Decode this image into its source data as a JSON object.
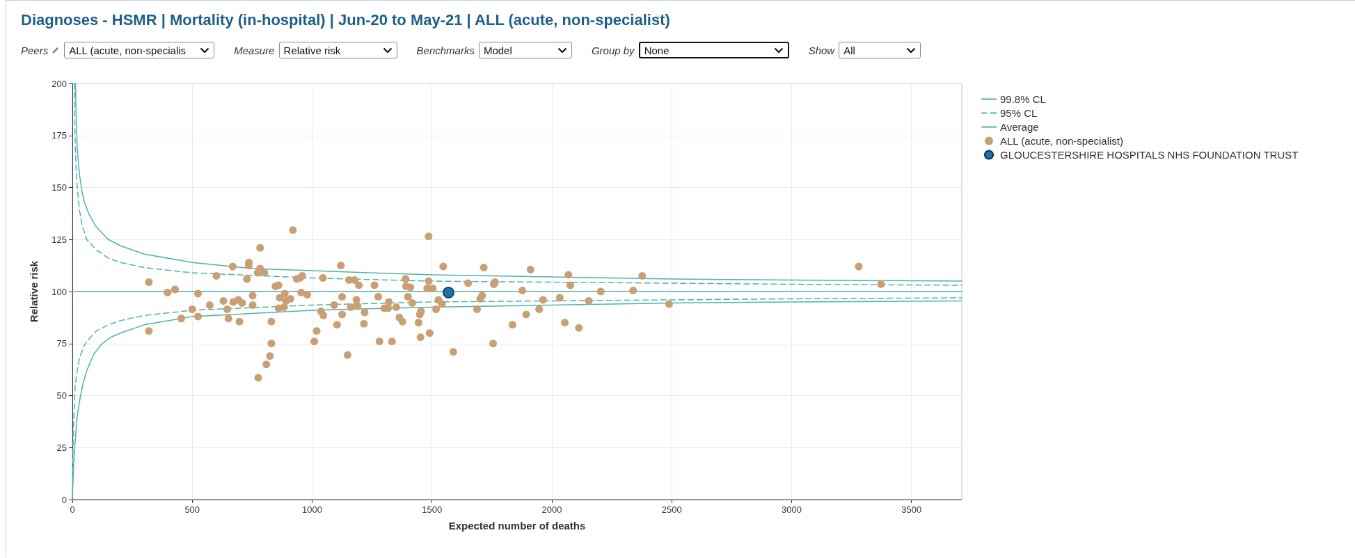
{
  "chart_data": {
    "type": "scatter",
    "title": "Diagnoses - HSMR | Mortality (in-hospital) | Jun-20 to May-21 | ALL (acute, non-specialist)",
    "annotations": [
      "Peers",
      "ALL (acute, non-specialis",
      "Measure",
      "Relative risk",
      "Benchmarks",
      "Model",
      "Group by",
      "None",
      "Show",
      "All"
    ],
    "xlabel": "Expected number of deaths",
    "ylabel": "Relative risk",
    "xlim": [
      0,
      3710
    ],
    "xticks": [
      0,
      500,
      1000,
      1500,
      2000,
      2500,
      3000,
      3500
    ],
    "ylim": [
      0,
      200
    ],
    "yticks": [
      0,
      25,
      50,
      75,
      100,
      125,
      150,
      175,
      200
    ],
    "grid": true,
    "legend": "top right",
    "series": [
      {
        "name": "99.8% CL",
        "type": "line",
        "marker": "none",
        "line_style": "solid",
        "color": "#4db3ae",
        "x": [
          13,
          16,
          20,
          25,
          30,
          40,
          50,
          70,
          100,
          150,
          200,
          300,
          500,
          750,
          1000,
          1500,
          2000,
          2500,
          3000,
          3710,
          null,
          0,
          3,
          6,
          10,
          15,
          20,
          27,
          34,
          45,
          60,
          90,
          124,
          160,
          200,
          300,
          500,
          750,
          1000,
          1500,
          2000,
          2500,
          3000,
          3710
        ],
        "values": [
          200,
          183,
          170,
          162,
          156,
          148,
          143,
          137,
          131,
          125,
          122,
          118,
          114,
          111,
          110,
          108,
          107,
          106,
          105.5,
          105,
          null,
          0,
          10,
          18,
          25,
          33,
          40,
          45,
          50,
          56,
          62,
          70,
          75,
          78,
          80,
          84,
          88,
          89.5,
          91,
          92.5,
          93.5,
          94.5,
          95,
          95.5
        ]
      },
      {
        "name": "95% CL",
        "type": "line",
        "marker": "none",
        "line_style": "dashed",
        "color": "#4db3ae",
        "x": [
          8,
          10,
          12,
          16,
          20,
          30,
          40,
          60,
          100,
          150,
          200,
          300,
          500,
          1000,
          1500,
          2000,
          3000,
          3710,
          null,
          0,
          3,
          6,
          9,
          12,
          20,
          30,
          45,
          60,
          100,
          150,
          200,
          300,
          500,
          1000,
          1500,
          2000,
          3000,
          3710
        ],
        "values": [
          200,
          182,
          170,
          158,
          150,
          139,
          132,
          125,
          120,
          116,
          114,
          111.5,
          109,
          106.5,
          105,
          104.5,
          103.5,
          103,
          null,
          0,
          25,
          40,
          48,
          55,
          62,
          68,
          73,
          76,
          81,
          84,
          86,
          88.5,
          91,
          93.5,
          95,
          95.5,
          96.5,
          97
        ]
      },
      {
        "name": "Average",
        "type": "line",
        "marker": "none",
        "line_style": "solid",
        "color": "#4db3ae",
        "x": [
          0,
          3710
        ],
        "values": [
          100,
          100
        ]
      },
      {
        "name": "ALL (acute, non-specialist)",
        "type": "scatter",
        "marker": "circle",
        "color": "#c9a074",
        "x": [
          319,
          319,
          397,
          428,
          454,
          500,
          524,
          524,
          573,
          601,
          630,
          646,
          651,
          669,
          671,
          692,
          697,
          708,
          728,
          736,
          736,
          752,
          752,
          773,
          783,
          783,
          775,
          801,
          809,
          824,
          830,
          830,
          847,
          860,
          860,
          865,
          886,
          891,
          883,
          910,
          920,
          936,
          949,
          959,
          954,
          980,
          1009,
          1019,
          1037,
          1045,
          1047,
          1092,
          1104,
          1120,
          1125,
          1125,
          1148,
          1154,
          1161,
          1177,
          1185,
          1190,
          1195,
          1219,
          1216,
          1260,
          1276,
          1281,
          1301,
          1317,
          1320,
          1333,
          1351,
          1364,
          1377,
          1390,
          1392,
          1400,
          1410,
          1418,
          1444,
          1449,
          1454,
          1452,
          1486,
          1486,
          1480,
          1503,
          1490,
          1517,
          1527,
          1542,
          1547,
          1589,
          1651,
          1688,
          1701,
          1709,
          1716,
          1755,
          1758,
          1763,
          1836,
          1877,
          1893,
          1911,
          1947,
          1963,
          2033,
          2054,
          2069,
          2077,
          2113,
          2154,
          2204,
          2339,
          2377,
          2489,
          3280,
          3373
        ],
        "values": [
          104.5,
          81,
          99.5,
          101,
          87,
          91.5,
          99,
          88,
          93.5,
          107.5,
          95.5,
          91.5,
          87,
          112,
          95,
          96,
          85.5,
          94.5,
          106,
          114,
          112.5,
          98,
          93.5,
          109,
          121,
          111,
          58.5,
          109,
          65,
          69,
          85.5,
          75,
          102.5,
          103,
          92,
          97,
          99,
          95.5,
          92.5,
          96.5,
          129.5,
          106,
          106.5,
          107.5,
          99.5,
          98.5,
          76,
          81,
          90.5,
          106.5,
          88.5,
          93.5,
          84,
          112.5,
          97.5,
          89,
          69.5,
          105.5,
          92.5,
          105.5,
          96,
          93,
          103,
          90,
          84.5,
          103,
          97.5,
          76,
          92,
          92,
          95,
          76,
          92.5,
          87.5,
          85.5,
          106,
          102.5,
          97.5,
          102,
          94.5,
          85,
          89,
          90.5,
          78,
          126.5,
          105,
          101.5,
          101.5,
          80,
          91.5,
          96,
          94,
          112,
          71,
          104,
          91.5,
          96.5,
          98,
          111.5,
          75,
          103.5,
          104.5,
          84,
          100.5,
          89,
          110.5,
          91.5,
          96,
          97,
          85,
          108,
          103,
          82.5,
          95.5,
          100,
          100.5,
          107.5,
          94,
          112,
          103.5
        ]
      },
      {
        "name": "GLOUCESTERSHIRE HOSPITALS NHS FOUNDATION TRUST",
        "type": "scatter",
        "marker": "circle",
        "color": "#1f6fae",
        "x": [
          1569
        ],
        "values": [
          99.5
        ]
      }
    ]
  }
}
